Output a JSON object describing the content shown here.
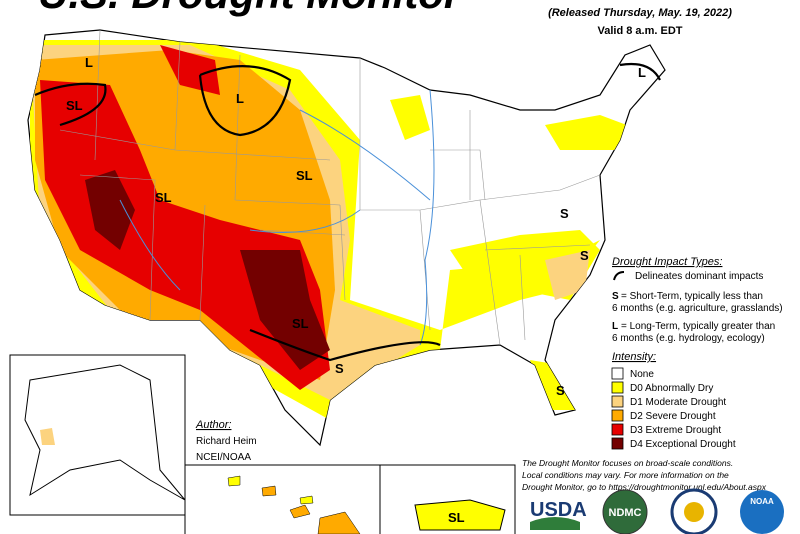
{
  "header": {
    "title": "U.S. Drought Monitor",
    "released": "(Released Thursday, May. 19, 2022)",
    "valid": "Valid 8 a.m. EDT"
  },
  "map_labels": [
    "L",
    "SL",
    "L",
    "SL",
    "SL",
    "S",
    "S",
    "SL",
    "S",
    "S",
    "L",
    "SL"
  ],
  "impact_types": {
    "heading": "Drought Impact Types:",
    "line_description": "Delineates dominant impacts",
    "items": [
      {
        "code": "S",
        "lines": [
          "= Short-Term, typically less than",
          "6 months (e.g. agriculture, grasslands)"
        ]
      },
      {
        "code": "L",
        "lines": [
          "= Long-Term, typically greater than",
          "6 months (e.g. hydrology, ecology)"
        ]
      }
    ]
  },
  "intensity": {
    "heading": "Intensity:",
    "items": [
      {
        "label": "None",
        "color": "#ffffff"
      },
      {
        "label": "D0 Abnormally Dry",
        "color": "#ffff00"
      },
      {
        "label": "D1 Moderate Drought",
        "color": "#fcd37f"
      },
      {
        "label": "D2 Severe Drought",
        "color": "#ffaa00"
      },
      {
        "label": "D3 Extreme Drought",
        "color": "#e60000"
      },
      {
        "label": "D4 Exceptional Drought",
        "color": "#730000"
      }
    ]
  },
  "author": {
    "heading": "Author:",
    "name": "Richard Heim",
    "org": "NCEI/NOAA"
  },
  "disclaimer": [
    "The Drought Monitor focuses on broad-scale conditions.",
    "Local conditions may vary. For more information on the",
    "Drought Monitor, go to https://droughtmonitor.unl.edu/About.aspx"
  ],
  "logos": [
    "USDA",
    "NDMC",
    "NOAA"
  ]
}
